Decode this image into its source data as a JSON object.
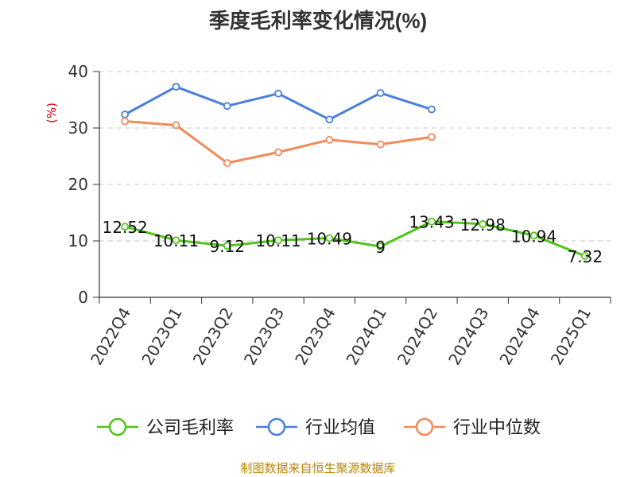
{
  "chart_data": {
    "type": "line",
    "title": "季度毛利率变化情况(%)",
    "ylabel": "(%)",
    "xlabel": "",
    "categories": [
      "2022Q4",
      "2023Q1",
      "2023Q2",
      "2023Q3",
      "2023Q4",
      "2024Q1",
      "2024Q2",
      "2024Q3",
      "2024Q4",
      "2025Q1"
    ],
    "ylim": [
      0,
      40
    ],
    "yticks": [
      0,
      10,
      20,
      30,
      40
    ],
    "grid": true,
    "legend_position": "bottom",
    "series": [
      {
        "name": "公司毛利率",
        "color": "#52c41a",
        "values": [
          12.52,
          10.11,
          9.12,
          10.11,
          10.49,
          9,
          13.43,
          12.98,
          10.94,
          7.32
        ],
        "labels": [
          "12.52",
          "10.11",
          "9.12",
          "10.11",
          "10.49",
          "9",
          "13.43",
          "12.98",
          "10.94",
          "7.32"
        ]
      },
      {
        "name": "行业均值",
        "color": "#4a7fdb",
        "values": [
          32.4,
          37.3,
          33.9,
          36.1,
          31.5,
          36.2,
          33.3,
          null,
          null,
          null
        ]
      },
      {
        "name": "行业中位数",
        "color": "#f28a5a",
        "values": [
          31.2,
          30.5,
          23.8,
          25.7,
          27.9,
          27.1,
          28.4,
          null,
          null,
          null
        ]
      }
    ],
    "source": "制图数据来自恒生聚源数据库"
  }
}
